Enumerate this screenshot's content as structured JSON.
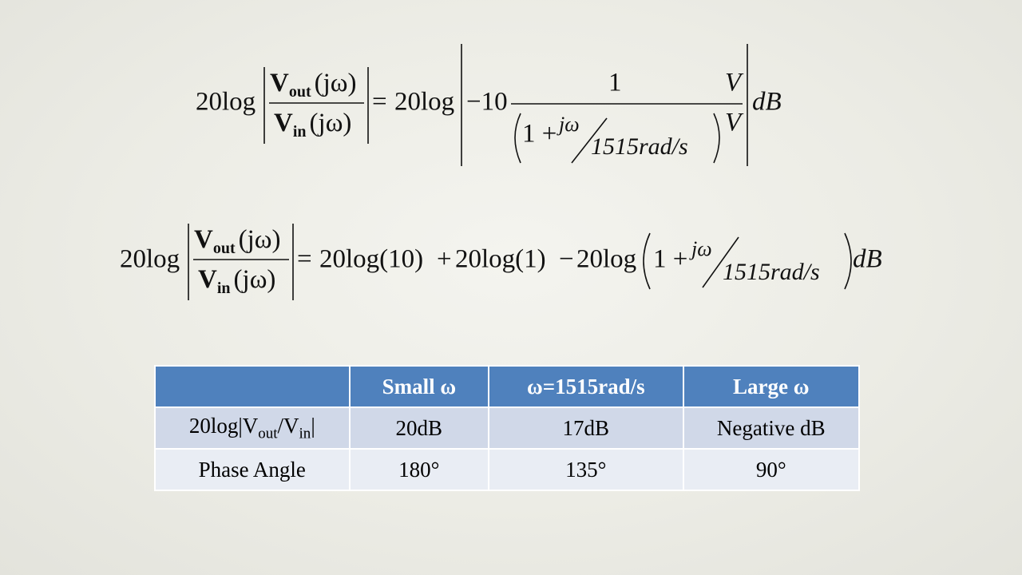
{
  "equation_1": {
    "lhs": {
      "coef": "20log",
      "num": {
        "symbol": "V",
        "sub": "out",
        "arg": "(jω)"
      },
      "den": {
        "symbol": "V",
        "sub": "in",
        "arg": "(jω)"
      }
    },
    "equals": "=",
    "rhs_coef": "20log",
    "gain": "−10",
    "frac_num": "1",
    "frac_den": {
      "one_plus": "1 +",
      "jw": "jω",
      "corner": "1515rad/s"
    },
    "ratio_num": "V",
    "ratio_den": "V",
    "unit": "dB"
  },
  "equation_2": {
    "lhs": {
      "coef": "20log",
      "num": {
        "symbol": "V",
        "sub": "out",
        "arg": "(jω)"
      },
      "den": {
        "symbol": "V",
        "sub": "in",
        "arg": "(jω)"
      }
    },
    "equals": "=",
    "terms": [
      "20log(10)",
      "+",
      "20log(1)",
      "−",
      "20log"
    ],
    "one_plus": "1 +",
    "jw": "jω",
    "corner": "1515rad/s",
    "unit": "dB"
  },
  "table": {
    "header": [
      "Small ω",
      "ω=1515rad/s",
      "Large ω"
    ],
    "rows": [
      {
        "label": [
          "20log|V",
          "out",
          "/V",
          "in",
          "|"
        ],
        "cells": [
          "20dB",
          "17dB",
          "Negative dB"
        ]
      },
      {
        "label": [
          "Phase Angle"
        ],
        "cells": [
          "180°",
          "135°",
          "90°"
        ]
      }
    ]
  }
}
